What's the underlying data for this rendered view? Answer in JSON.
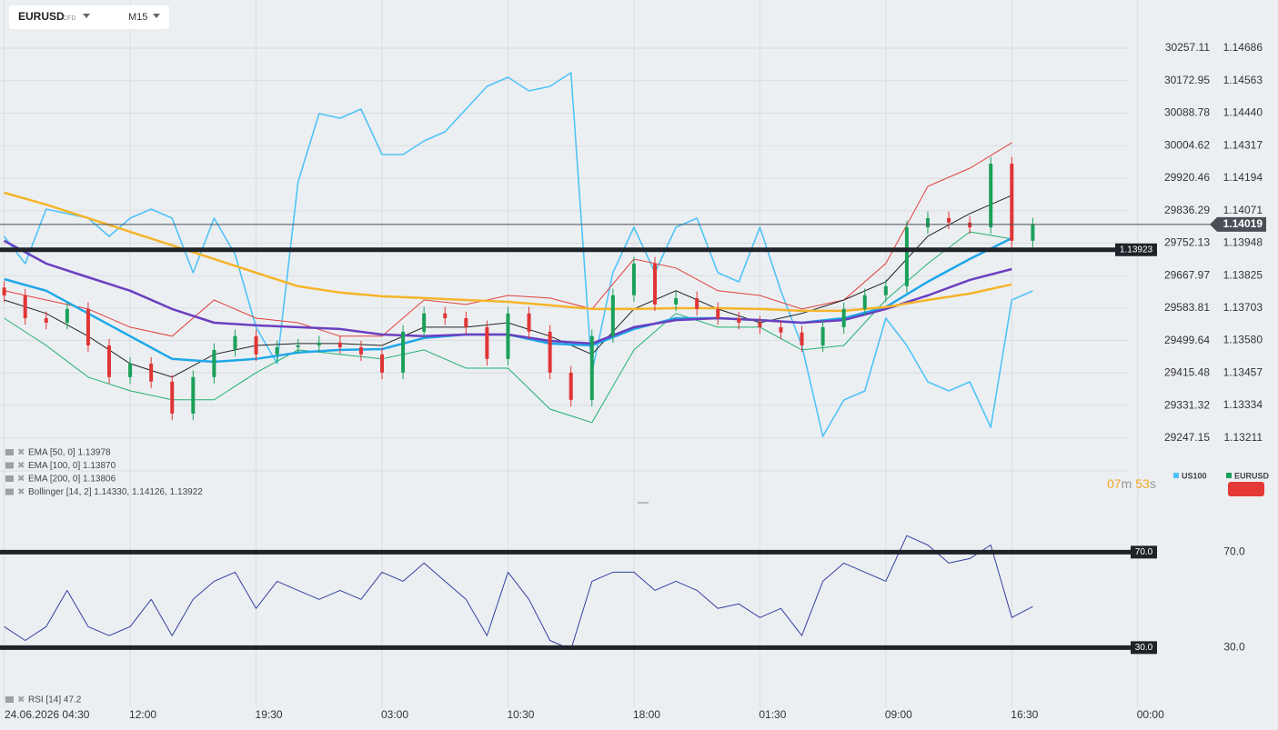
{
  "header": {
    "symbol": "EURUSD",
    "instrument_type": "CFD",
    "timeframe": "M15"
  },
  "chart_data": [
    {
      "type": "candlestick",
      "xlim": [
        -1,
        272
      ],
      "ylim": [
        1.13086,
        1.14748
      ],
      "yticks": [
        1.14686,
        1.14563,
        {
          "value": 1.1444,
          "label": "1.14440"
        },
        1.14317,
        1.14194,
        1.14071,
        1.13948,
        1.13825,
        1.13703,
        {
          "value": 1.1358,
          "label": "1.13580"
        },
        1.13457,
        1.13334,
        1.13211
      ],
      "y2lim": [
        29162.2,
        30299.5
      ],
      "y2ticks": [
        30257.11,
        30172.95,
        30088.78,
        30004.62,
        29920.46,
        29836.29,
        29752.13,
        29667.97,
        29583.81,
        29499.64,
        29415.48,
        29331.32,
        29247.15
      ],
      "grid": true,
      "series": [
        {
          "name": "US100",
          "type": "line",
          "axis": "y2",
          "color": "#4fc3f7",
          "x": [
            0,
            5,
            10,
            15,
            20,
            25,
            30,
            35,
            40,
            45,
            50,
            55,
            60,
            65,
            70,
            75,
            80,
            85,
            90,
            95,
            100,
            105,
            110,
            115,
            120,
            125,
            130,
            135,
            140,
            145,
            150,
            155,
            160,
            165,
            170,
            175,
            180,
            185,
            190,
            195,
            200,
            205,
            210,
            215,
            220,
            225,
            230,
            235,
            240,
            245
          ],
          "values": [
            29769.7,
            29699.0,
            29840.3,
            29828.5,
            29816.8,
            29769.7,
            29816.8,
            29840.3,
            29816.8,
            29675.5,
            29816.8,
            29722.6,
            29534.2,
            29440.0,
            29910.9,
            30087.6,
            30075.8,
            30099.3,
            29981.6,
            29981.6,
            30016.9,
            30040.5,
            30099.3,
            30158.2,
            30181.7,
            30146.4,
            30158.2,
            30193.5,
            29416.4,
            29675.5,
            29793.2,
            29675.5,
            29793.2,
            29816.8,
            29675.5,
            29651.9,
            29793.2,
            29628.4,
            29487.1,
            29251.6,
            29345.8,
            29369.3,
            29557.7,
            29487.1,
            29392.9,
            29369.3,
            29392.9,
            29275.1,
            29604.8,
            29628.4
          ]
        },
        {
          "name": "EMA [50, 0] 1.13978",
          "type": "line",
          "color": "#1ea7e8",
          "x": [
            0,
            10,
            20,
            30,
            40,
            50,
            60,
            70,
            80,
            90,
            100,
            110,
            120,
            130,
            140,
            150,
            160,
            170,
            180,
            190,
            200,
            210,
            220,
            230,
            240
          ],
          "values": [
            1.13812,
            1.13768,
            1.13682,
            1.13596,
            1.1351,
            1.13499,
            1.1351,
            1.13534,
            1.13544,
            1.13547,
            1.13589,
            1.13602,
            1.13602,
            1.13568,
            1.13561,
            1.13623,
            1.13664,
            1.13664,
            1.13657,
            1.13647,
            1.13664,
            1.13706,
            1.13802,
            1.13888,
            1.13967
          ]
        },
        {
          "name": "EMA [100, 0] 1.13870",
          "type": "line",
          "color": "#6a3fc0",
          "x": [
            0,
            10,
            20,
            30,
            40,
            50,
            60,
            70,
            80,
            90,
            100,
            110,
            120,
            130,
            140,
            150,
            160,
            170,
            180,
            190,
            200,
            210,
            220,
            230,
            240
          ],
          "values": [
            1.13957,
            1.13871,
            1.13819,
            1.13768,
            1.13699,
            1.13647,
            1.13637,
            1.1363,
            1.13623,
            1.13602,
            1.13596,
            1.13602,
            1.13602,
            1.13578,
            1.13568,
            1.1363,
            1.13657,
            1.13664,
            1.13657,
            1.13647,
            1.13657,
            1.13699,
            1.1375,
            1.13809,
            1.1385
          ]
        },
        {
          "name": "EMA [200, 0] 1.13806",
          "type": "line",
          "color": "#f5b42a",
          "x": [
            0,
            10,
            20,
            30,
            40,
            50,
            60,
            70,
            80,
            90,
            100,
            110,
            120,
            130,
            140,
            150,
            160,
            170,
            180,
            190,
            200,
            210,
            220,
            230,
            240
          ],
          "values": [
            1.14139,
            1.14094,
            1.14043,
            1.13991,
            1.1394,
            1.13888,
            1.13836,
            1.13785,
            1.13761,
            1.13747,
            1.1374,
            1.13733,
            1.13726,
            1.13713,
            1.13699,
            1.13699,
            1.13702,
            1.13702,
            1.13699,
            1.13692,
            1.13692,
            1.13706,
            1.13733,
            1.13757,
            1.13792
          ]
        },
        {
          "name": "Bollinger [14, 2] 1.14330, 1.14126, 1.13922",
          "type": "band",
          "colors": [
            "#e0403a",
            "#222222",
            "#20b070"
          ],
          "x": [
            0,
            10,
            20,
            30,
            40,
            50,
            60,
            70,
            80,
            90,
            100,
            110,
            120,
            130,
            140,
            150,
            160,
            170,
            180,
            190,
            200,
            210,
            220,
            230,
            240
          ],
          "upper": [
            1.13768,
            1.13733,
            1.13699,
            1.1363,
            1.13596,
            1.13733,
            1.13664,
            1.13647,
            1.13596,
            1.13596,
            1.13733,
            1.13716,
            1.1375,
            1.1374,
            1.13699,
            1.13888,
            1.13854,
            1.13768,
            1.1375,
            1.13699,
            1.13733,
            1.13871,
            1.14163,
            1.14232,
            1.14328
          ],
          "middle": [
            1.13733,
            1.13682,
            1.13596,
            1.13492,
            1.13441,
            1.13527,
            1.13561,
            1.13568,
            1.13568,
            1.13561,
            1.1363,
            1.1363,
            1.13647,
            1.13596,
            1.13527,
            1.13699,
            1.13768,
            1.13699,
            1.13647,
            1.13682,
            1.13733,
            1.13802,
            1.13974,
            1.1406,
            1.14129
          ],
          "lower": [
            1.13664,
            1.13561,
            1.13441,
            1.13389,
            1.13355,
            1.13355,
            1.13458,
            1.13544,
            1.13527,
            1.1351,
            1.13544,
            1.13475,
            1.13475,
            1.1332,
            1.13269,
            1.13544,
            1.13682,
            1.1363,
            1.1363,
            1.13544,
            1.13561,
            1.13733,
            1.13871,
            1.13991,
            1.13964
          ]
        },
        {
          "name": "EURUSD",
          "type": "candlestick",
          "color": "#1aa05a",
          "down_color": "#e03535",
          "x": [
            0,
            5,
            10,
            15,
            20,
            25,
            30,
            35,
            40,
            45,
            50,
            55,
            60,
            65,
            70,
            75,
            80,
            85,
            90,
            95,
            100,
            105,
            110,
            115,
            120,
            125,
            130,
            135,
            140,
            145,
            150,
            155,
            160,
            165,
            170,
            175,
            180,
            185,
            190,
            195,
            200,
            205,
            210,
            215,
            220,
            225,
            230,
            235,
            240,
            245
          ],
          "open": [
            1.1378,
            1.1375,
            1.13664,
            1.13647,
            1.13699,
            1.13561,
            1.13441,
            1.13492,
            1.13424,
            1.13303,
            1.13441,
            1.13544,
            1.13596,
            1.13527,
            1.13554,
            1.13561,
            1.13572,
            1.13554,
            1.13527,
            1.13458,
            1.13613,
            1.13682,
            1.13664,
            1.1363,
            1.1351,
            1.13682,
            1.13613,
            1.13458,
            1.13355,
            1.13596,
            1.13751,
            1.13871,
            1.13716,
            1.1374,
            1.13699,
            1.13664,
            1.13647,
            1.1363,
            1.1361,
            1.13561,
            1.1363,
            1.13699,
            1.13751,
            1.13785,
            1.14008,
            1.14043,
            1.14026,
            1.14008,
            1.14249,
            1.13957
          ],
          "high": [
            1.13805,
            1.13775,
            1.13689,
            1.13724,
            1.13724,
            1.13586,
            1.13517,
            1.13517,
            1.13449,
            1.13466,
            1.13569,
            1.13621,
            1.13621,
            1.13579,
            1.13586,
            1.13597,
            1.13597,
            1.13579,
            1.13552,
            1.13638,
            1.13707,
            1.13707,
            1.13689,
            1.13655,
            1.13707,
            1.13707,
            1.13638,
            1.13483,
            1.13621,
            1.13776,
            1.13896,
            1.13896,
            1.13765,
            1.13765,
            1.13724,
            1.13689,
            1.13672,
            1.13655,
            1.13635,
            1.13655,
            1.13724,
            1.13776,
            1.1381,
            1.14033,
            1.14068,
            1.14068,
            1.14051,
            1.14274,
            1.14274,
            1.14044
          ],
          "low": [
            1.13725,
            1.13639,
            1.13622,
            1.13622,
            1.13536,
            1.13416,
            1.13416,
            1.13399,
            1.13278,
            1.13278,
            1.13416,
            1.13519,
            1.13502,
            1.13502,
            1.13529,
            1.13536,
            1.13529,
            1.13502,
            1.13433,
            1.13433,
            1.13588,
            1.13639,
            1.13605,
            1.13485,
            1.13485,
            1.13588,
            1.13433,
            1.1333,
            1.1333,
            1.13571,
            1.13726,
            1.13691,
            1.13691,
            1.13674,
            1.13639,
            1.13622,
            1.13605,
            1.13585,
            1.13536,
            1.13536,
            1.13605,
            1.13674,
            1.13726,
            1.1376,
            1.13983,
            1.14001,
            1.13983,
            1.13983,
            1.13932,
            1.13932
          ],
          "close": [
            1.1375,
            1.13664,
            1.13647,
            1.13699,
            1.13561,
            1.13441,
            1.13492,
            1.13424,
            1.13303,
            1.13441,
            1.13544,
            1.13596,
            1.13527,
            1.13554,
            1.13561,
            1.13572,
            1.13554,
            1.13527,
            1.13458,
            1.13613,
            1.13682,
            1.13664,
            1.1363,
            1.1351,
            1.13682,
            1.13613,
            1.13458,
            1.13355,
            1.13596,
            1.13751,
            1.13871,
            1.13716,
            1.1374,
            1.13699,
            1.13664,
            1.13647,
            1.1363,
            1.1361,
            1.13561,
            1.1363,
            1.13699,
            1.13751,
            1.13785,
            1.14008,
            1.14043,
            1.14026,
            1.14008,
            1.14249,
            1.13957,
            1.14019
          ]
        }
      ],
      "price_lines": [
        {
          "value": 1.13923,
          "color": "#1f2329",
          "width": 5
        },
        {
          "value": 1.14019,
          "color": "#4a4f57",
          "width": 1
        }
      ],
      "countdown": {
        "minutes": "07",
        "minutes_unit": "m",
        "seconds": "53",
        "seconds_unit": "s"
      }
    },
    {
      "type": "line",
      "xlim": [
        -1,
        272
      ],
      "ylim": [
        5,
        88
      ],
      "yticks": [
        {
          "value": 70,
          "label": "70.0"
        },
        {
          "value": 30,
          "label": "30.0"
        }
      ],
      "xticks": [
        {
          "value": 0,
          "label": "24.06.2026 04:30"
        },
        {
          "value": 30,
          "label": "12:00"
        },
        {
          "value": 60,
          "label": "19:30"
        },
        {
          "value": 90,
          "label": "03:00"
        },
        {
          "value": 120,
          "label": "10:30"
        },
        {
          "value": 150,
          "label": "18:00"
        },
        {
          "value": 180,
          "label": "01:30"
        },
        {
          "value": 210,
          "label": "09:00"
        },
        {
          "value": 240,
          "label": "16:30"
        },
        {
          "value": 270,
          "label": "00:00"
        }
      ],
      "series": [
        {
          "name": "RSI [14] 47.2",
          "color": "#3340a0",
          "x": [
            0,
            5,
            10,
            15,
            20,
            25,
            30,
            35,
            40,
            45,
            50,
            55,
            60,
            65,
            70,
            75,
            80,
            85,
            90,
            95,
            100,
            105,
            110,
            115,
            120,
            125,
            130,
            135,
            140,
            145,
            150,
            155,
            160,
            165,
            170,
            175,
            180,
            185,
            190,
            195,
            200,
            205,
            210,
            215,
            220,
            225,
            230,
            235,
            240,
            245
          ],
          "values": [
            38.8,
            33.0,
            38.8,
            54.0,
            38.8,
            35.0,
            38.8,
            50.2,
            35.0,
            50.2,
            57.8,
            61.6,
            46.4,
            57.8,
            54.0,
            50.2,
            54.0,
            50.2,
            61.6,
            57.8,
            65.4,
            57.8,
            50.2,
            35.0,
            61.6,
            50.2,
            33.0,
            29.2,
            57.8,
            61.6,
            61.6,
            54.0,
            57.8,
            54.0,
            46.4,
            48.3,
            42.6,
            46.4,
            35.0,
            57.8,
            65.4,
            61.6,
            57.8,
            76.9,
            73.0,
            65.4,
            67.3,
            73.0,
            42.6,
            47.2
          ]
        }
      ]
    }
  ]
}
